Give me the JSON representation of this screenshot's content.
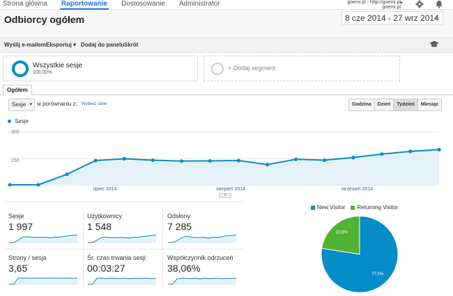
{
  "nav": {
    "items": [
      {
        "label": "Strona główna",
        "active": false
      },
      {
        "label": "Raportowanie",
        "active": true
      },
      {
        "label": "Dostosowanie",
        "active": false
      },
      {
        "label": "Administrator",
        "active": false
      }
    ],
    "account_line1": "goemi.pl - http://goemi.pl",
    "account_line2": "goemi.pl",
    "icons": [
      "gear-icon",
      "bell-icon"
    ]
  },
  "header": {
    "title": "Odbiorcy ogółem",
    "date_range": "8 cze 2014 - 27 wrz 2014"
  },
  "toolbar": {
    "email": "Wyślij e-mailem",
    "export": "Eksportuj",
    "add_to_dashboard": "Dodaj do panelu",
    "shortcut": "Skrót"
  },
  "segments": {
    "main_name": "Wszystkie sesje",
    "main_pct": "100,00%",
    "add_label": "+ Dodaj segment"
  },
  "tabs": {
    "overview": "Ogółem"
  },
  "controls": {
    "metric": "Sesje",
    "compare_label": "w porównaniu z:",
    "compare_link": "Wybierz dane",
    "periods": [
      {
        "label": "Godzina",
        "active": false
      },
      {
        "label": "Dzień",
        "active": false
      },
      {
        "label": "Tydzień",
        "active": true
      },
      {
        "label": "Miesiąc",
        "active": false
      }
    ]
  },
  "chart_data": [
    {
      "type": "area",
      "legend": "Sesje",
      "ylim": [
        0,
        300
      ],
      "yticks": [
        "300",
        "150"
      ],
      "xlabels": [
        "lipiec 2014",
        "sierpień 2014",
        "wrzesień 2014"
      ],
      "series": [
        {
          "name": "Sesje",
          "color": "#058dc7",
          "values": [
            0,
            0,
            60,
            138,
            148,
            140,
            135,
            136,
            138,
            115,
            145,
            140,
            155,
            175,
            190,
            200
          ]
        }
      ]
    },
    {
      "type": "pie",
      "series": [
        {
          "name": "New Visitor",
          "value": 77.5,
          "label": "77,5%",
          "color": "#058dc7"
        },
        {
          "name": "Returning Visitor",
          "value": 22.5,
          "label": "22,5%",
          "color": "#50b432"
        }
      ]
    }
  ],
  "metrics": [
    {
      "label": "Sesje",
      "value": "1 997",
      "spark": [
        0,
        0,
        30,
        70,
        75,
        70,
        68,
        68,
        70,
        58,
        73,
        70,
        78,
        88,
        95,
        100
      ]
    },
    {
      "label": "Użytkownicy",
      "value": "1 548",
      "spark": [
        0,
        0,
        30,
        65,
        70,
        66,
        64,
        66,
        66,
        56,
        70,
        68,
        76,
        85,
        92,
        100
      ]
    },
    {
      "label": "Odsłony",
      "value": "7 285",
      "spark": [
        0,
        0,
        25,
        60,
        80,
        70,
        66,
        65,
        68,
        56,
        72,
        68,
        75,
        90,
        94,
        100
      ]
    },
    {
      "label": "Strony / sesja",
      "value": "3,65",
      "spark": [
        0,
        0,
        80,
        82,
        80,
        78,
        80,
        80,
        79,
        80,
        82,
        80,
        80,
        81,
        79,
        80
      ]
    },
    {
      "label": "Śr. czas trwania sesji",
      "value": "00:03:27",
      "spark": [
        0,
        0,
        78,
        80,
        76,
        79,
        78,
        74,
        80,
        75,
        77,
        78,
        76,
        80,
        74,
        76
      ]
    },
    {
      "label": "Współczynnik odrzuceń",
      "value": "38,06%",
      "spark": [
        0,
        0,
        70,
        80,
        78,
        74,
        79,
        72,
        78,
        74,
        76,
        80,
        72,
        76,
        75,
        78
      ]
    }
  ]
}
